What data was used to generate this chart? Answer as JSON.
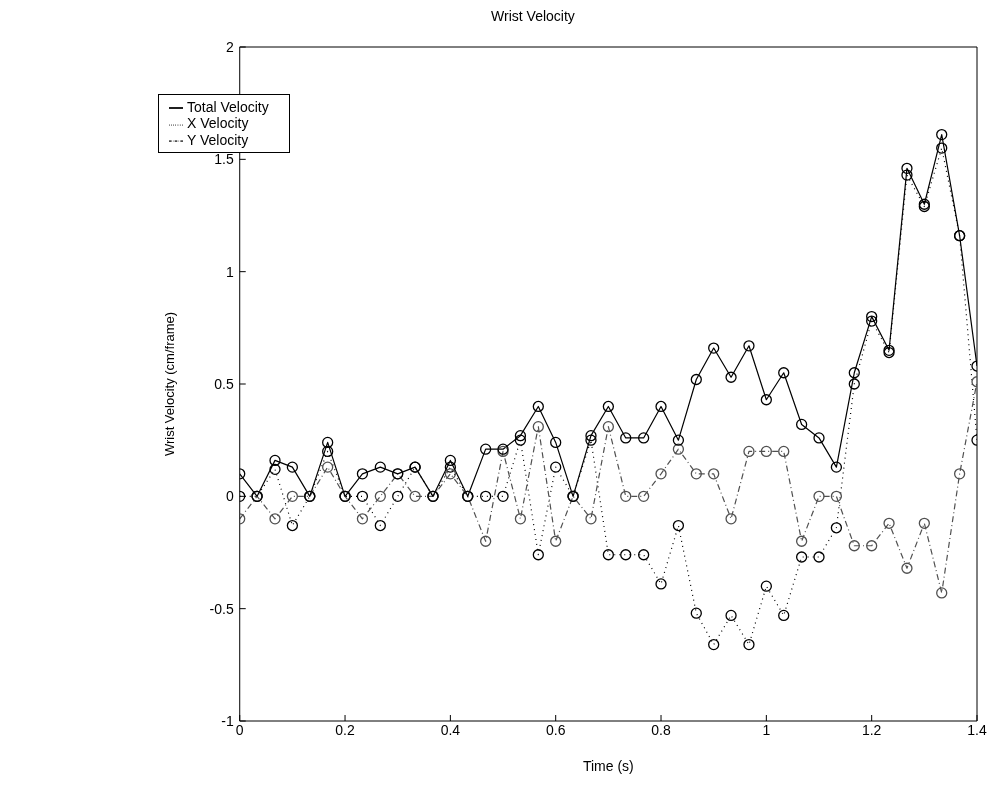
{
  "chart_data": {
    "type": "line",
    "title": "Wrist Velocity",
    "xlabel": "Time (s)",
    "ylabel": "Wrist Velocity (cm/frame)",
    "x": [
      0,
      0.033,
      0.067,
      0.1,
      0.133,
      0.167,
      0.2,
      0.233,
      0.267,
      0.3,
      0.333,
      0.367,
      0.4,
      0.433,
      0.467,
      0.5,
      0.533,
      0.567,
      0.6,
      0.633,
      0.667,
      0.7,
      0.733,
      0.767,
      0.8,
      0.833,
      0.867,
      0.9,
      0.933,
      0.967,
      1,
      1.033,
      1.067,
      1.1,
      1.133,
      1.167,
      1.2,
      1.233,
      1.267,
      1.3,
      1.333,
      1.367,
      1.4
    ],
    "series": [
      {
        "name": "X Velocity",
        "color": "#000000",
        "line_style": "dotted",
        "values": [
          0,
          0,
          0.12,
          -0.13,
          0,
          0.2,
          0,
          0,
          -0.13,
          0,
          0.13,
          0,
          0.13,
          0,
          0,
          0,
          0.25,
          -0.26,
          0.13,
          0,
          0.25,
          -0.26,
          -0.26,
          -0.26,
          -0.39,
          -0.13,
          -0.52,
          -0.66,
          -0.53,
          -0.66,
          -0.4,
          -0.53,
          -0.27,
          -0.27,
          -0.14,
          0.5,
          0.78,
          0.64,
          1.43,
          1.29,
          1.55,
          1.16,
          0.25
        ]
      },
      {
        "name": "Y Velocity",
        "color": "#505050",
        "line_style": "dashed",
        "values": [
          -0.1,
          0,
          -0.1,
          0,
          0,
          0.13,
          0,
          -0.1,
          0,
          0.1,
          0,
          0,
          0.1,
          0,
          -0.2,
          0.2,
          -0.1,
          0.31,
          -0.2,
          0,
          -0.1,
          0.31,
          0,
          0,
          0.1,
          0.21,
          0.1,
          0.1,
          -0.1,
          0.2,
          0.2,
          0.2,
          -0.2,
          0,
          0,
          -0.22,
          -0.22,
          -0.12,
          -0.32,
          -0.12,
          -0.43,
          0.1,
          0.51
        ]
      },
      {
        "name": "Total Velocity",
        "color": "#000000",
        "line_style": "solid",
        "values": [
          0.1,
          0,
          0.16,
          0.13,
          0,
          0.24,
          0,
          0.1,
          0.13,
          0.1,
          0.13,
          0,
          0.16,
          0,
          0.21,
          0.21,
          0.27,
          0.4,
          0.24,
          0,
          0.27,
          0.4,
          0.26,
          0.26,
          0.4,
          0.25,
          0.52,
          0.66,
          0.53,
          0.67,
          0.43,
          0.55,
          0.32,
          0.26,
          0.13,
          0.55,
          0.8,
          0.65,
          1.46,
          1.3,
          1.61,
          1.16,
          0.58
        ]
      }
    ],
    "xlim": [
      0,
      1.4
    ],
    "xticks": [
      0,
      0.2,
      0.4,
      0.6,
      0.8,
      1,
      1.2,
      1.4
    ],
    "ylim": [
      -1,
      2
    ],
    "yticks": [
      -1,
      -0.5,
      0,
      0.5,
      1,
      1.5,
      2
    ],
    "grid": false,
    "legend": "top left",
    "marker": "circle"
  }
}
